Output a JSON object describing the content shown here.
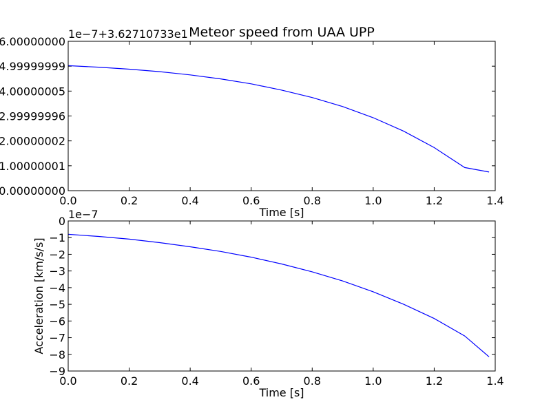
{
  "chart_data": [
    {
      "type": "line",
      "title": "Meteor speed from  UAA UPP",
      "xlabel": "Time [s]",
      "ylabel": "",
      "offset_text": "1e−7+3.62710733e1",
      "xlim": [
        0.0,
        1.4
      ],
      "ylim": [
        0.0,
        6.0
      ],
      "x_tick_labels": [
        "0.0",
        "0.2",
        "0.4",
        "0.6",
        "0.8",
        "1.0",
        "1.2",
        "1.4"
      ],
      "x_tick_values": [
        0.0,
        0.2,
        0.4,
        0.6,
        0.8,
        1.0,
        1.2,
        1.4
      ],
      "y_tick_labels": [
        "0.00000000",
        "1.00000001",
        "2.00000002",
        "2.99999996",
        "4.00000005",
        "4.99999999",
        "6.00000000"
      ],
      "y_tick_values": [
        0,
        1,
        2,
        3,
        4,
        5,
        6
      ],
      "grid": false,
      "series": [
        {
          "color": "#0000ff",
          "x": [
            0.0,
            0.1,
            0.2,
            0.3,
            0.4,
            0.5,
            0.6,
            0.7,
            0.8,
            0.9,
            1.0,
            1.1,
            1.2,
            1.3,
            1.38
          ],
          "y": [
            5.02,
            4.96,
            4.88,
            4.78,
            4.65,
            4.49,
            4.29,
            4.04,
            3.74,
            3.38,
            2.93,
            2.39,
            1.73,
            0.93,
            0.75
          ]
        }
      ]
    },
    {
      "type": "line",
      "title": "",
      "xlabel": "Time [s]",
      "ylabel": "Acceleration [km/s/s]",
      "offset_text": "1e−7",
      "xlim": [
        0.0,
        1.4
      ],
      "ylim": [
        -9.0,
        0.0
      ],
      "x_tick_labels": [
        "0.0",
        "0.2",
        "0.4",
        "0.6",
        "0.8",
        "1.0",
        "1.2",
        "1.4"
      ],
      "x_tick_values": [
        0.0,
        0.2,
        0.4,
        0.6,
        0.8,
        1.0,
        1.2,
        1.4
      ],
      "y_tick_labels": [
        "−9",
        "−8",
        "−7",
        "−6",
        "−5",
        "−4",
        "−3",
        "−2",
        "−1",
        "0"
      ],
      "y_tick_values": [
        -9,
        -8,
        -7,
        -6,
        -5,
        -4,
        -3,
        -2,
        -1,
        0
      ],
      "grid": false,
      "series": [
        {
          "color": "#0000ff",
          "x": [
            0.0,
            0.1,
            0.2,
            0.3,
            0.4,
            0.5,
            0.6,
            0.7,
            0.8,
            0.9,
            1.0,
            1.1,
            1.2,
            1.3,
            1.38
          ],
          "y": [
            -0.8,
            -0.93,
            -1.09,
            -1.3,
            -1.55,
            -1.83,
            -2.17,
            -2.58,
            -3.05,
            -3.6,
            -4.25,
            -5.0,
            -5.85,
            -6.9,
            -8.15
          ]
        }
      ]
    }
  ]
}
